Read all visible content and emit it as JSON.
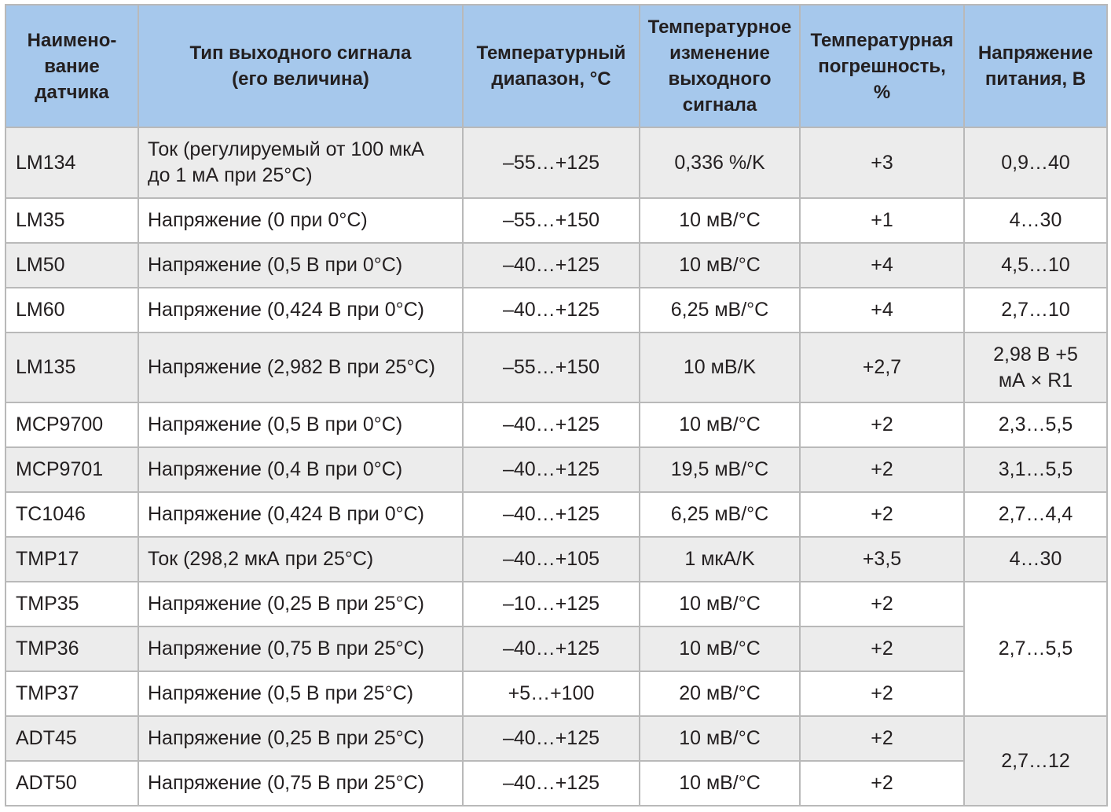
{
  "headers": {
    "name": "Наимено-\nвание\nдатчика",
    "type": "Тип выходного сигнала\n(его  величина)",
    "range": "Температурный\nдиапазон, °С",
    "change": "Температурное\nизменение\nвыходного\nсигнала",
    "error": "Температурная\nпогрешность,\n%",
    "voltage": "Напряжение\nпитания, В"
  },
  "rows": [
    {
      "name": "LM134",
      "type": "Ток (регулируемый от 100 мкА\nдо 1 мА при 25°С)",
      "range": "–55…+125",
      "change": "0,336 %/K",
      "error": "+3",
      "voltage": "0,9…40"
    },
    {
      "name": "LM35",
      "type": "Напряжение (0 при 0°С)",
      "range": "–55…+150",
      "change": "10 мВ/°С",
      "error": "+1",
      "voltage": "4…30"
    },
    {
      "name": "LM50",
      "type": "Напряжение (0,5 В при 0°С)",
      "range": "–40…+125",
      "change": "10 мВ/°С",
      "error": "+4",
      "voltage": "4,5…10"
    },
    {
      "name": "LM60",
      "type": "Напряжение (0,424 В при 0°С)",
      "range": "–40…+125",
      "change": "6,25 мВ/°С",
      "error": "+4",
      "voltage": "2,7…10"
    },
    {
      "name": "LM135",
      "type": "Напряжение (2,982 В при 25°С)",
      "range": "–55…+150",
      "change": "10 мВ/K",
      "error": "+2,7",
      "voltage": "2,98 В +5\nмА × R1"
    },
    {
      "name": "MCP9700",
      "type": "Напряжение (0,5 В при 0°С)",
      "range": "–40…+125",
      "change": "10 мВ/°С",
      "error": "+2",
      "voltage": "2,3…5,5"
    },
    {
      "name": "MCP9701",
      "type": "Напряжение (0,4 В при 0°С)",
      "range": "–40…+125",
      "change": "19,5 мВ/°С",
      "error": "+2",
      "voltage": "3,1…5,5"
    },
    {
      "name": "TC1046",
      "type": "Напряжение (0,424 В при 0°С)",
      "range": "–40…+125",
      "change": "6,25 мВ/°С",
      "error": "+2",
      "voltage": "2,7…4,4"
    },
    {
      "name": "TMP17",
      "type": "Ток (298,2 мкА при 25°С)",
      "range": "–40…+105",
      "change": "1 мкА/K",
      "error": "+3,5",
      "voltage": "4…30"
    },
    {
      "name": "TMP35",
      "type": "Напряжение (0,25 В при 25°С)",
      "range": "–10…+125",
      "change": "10 мВ/°С",
      "error": "+2"
    },
    {
      "name": "TMP36",
      "type": "Напряжение (0,75 В при 25°С)",
      "range": "–40…+125",
      "change": "10 мВ/°С",
      "error": "+2"
    },
    {
      "name": "TMP37",
      "type": "Напряжение (0,5 В при 25°С)",
      "range": "+5…+100",
      "change": "20 мВ/°С",
      "error": "+2"
    },
    {
      "name": "ADT45",
      "type": "Напряжение (0,25 В при 25°С)",
      "range": "–40…+125",
      "change": "10 мВ/°С",
      "error": "+2"
    },
    {
      "name": "ADT50",
      "type": "Напряжение (0,75 В при 25°С)",
      "range": "–40…+125",
      "change": "10 мВ/°С",
      "error": "+2"
    }
  ],
  "merged_voltage": {
    "tmp_group": "2,7…5,5",
    "adt_group": "2,7…12"
  },
  "colors": {
    "header_bg": "#a6c8ec",
    "row_shade": "#ececec",
    "row_white": "#ffffff",
    "border": "#b9b9b9",
    "text": "#231f20"
  }
}
